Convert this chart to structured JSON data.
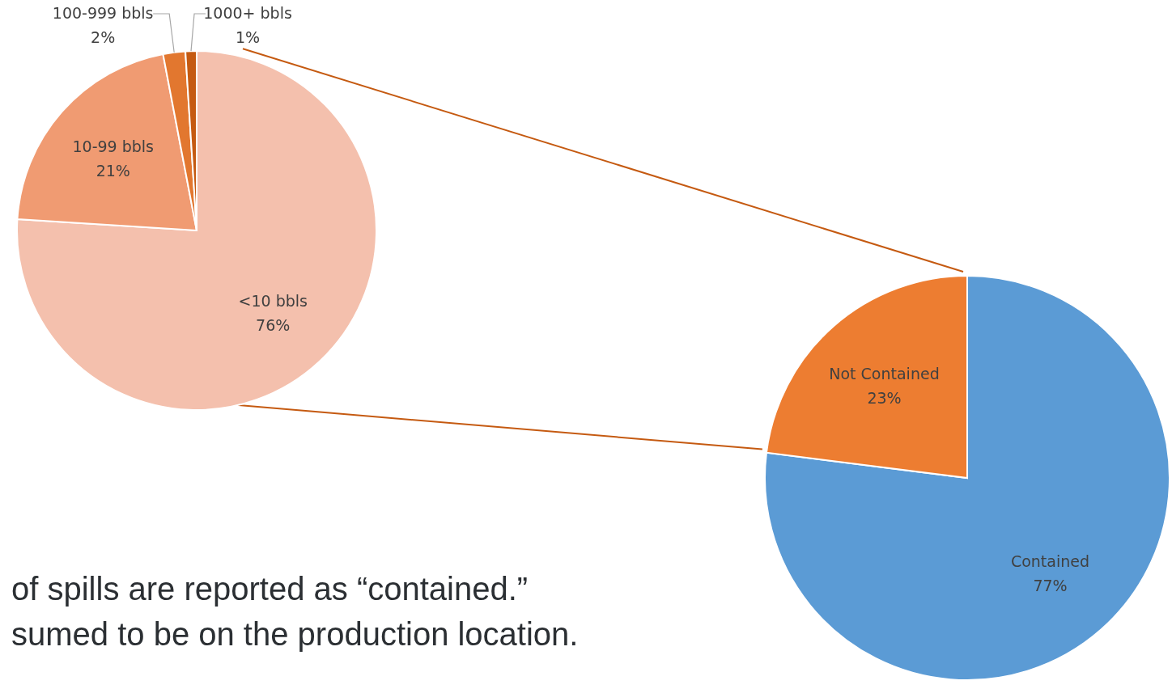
{
  "chart_data": [
    {
      "type": "pie",
      "categories": [
        "<10 bbls",
        "10-99 bbls",
        "100-999 bbls",
        "1000+ bbls"
      ],
      "values": [
        76,
        21,
        2,
        1
      ],
      "colors": [
        "#f4c0ad",
        "#f09b72",
        "#e2772f",
        "#c55a11"
      ],
      "value_labels": [
        "76%",
        "21%",
        "2%",
        "1%"
      ],
      "legend": false,
      "annotations": [
        "of spills are reported as “contained.”",
        "sumed to be on the production location."
      ]
    },
    {
      "type": "pie",
      "categories": [
        "Contained",
        "Not Contained"
      ],
      "values": [
        77,
        23
      ],
      "colors": [
        "#5b9bd5",
        "#ed7d31"
      ],
      "value_labels": [
        "77%",
        "23%"
      ],
      "legend": false
    }
  ]
}
